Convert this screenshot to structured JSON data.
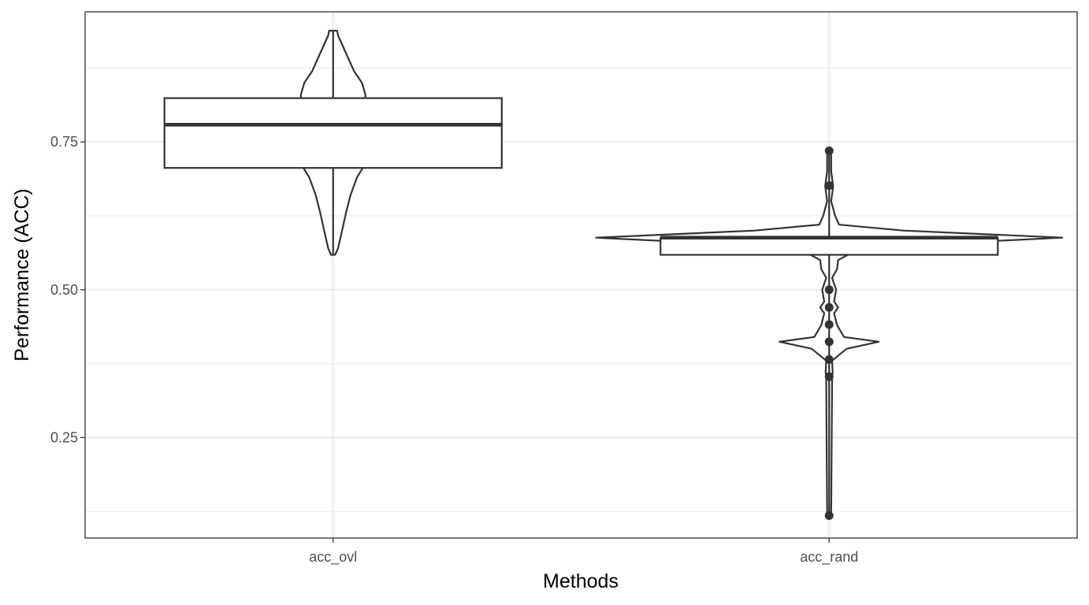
{
  "chart_data": {
    "type": "violin-box",
    "xlabel": "Methods",
    "ylabel": "Performance (ACC)",
    "categories": [
      "acc_ovl",
      "acc_rand"
    ],
    "ylim": [
      0.08,
      0.97
    ],
    "y_ticks": [
      0.25,
      0.5,
      0.75
    ],
    "y_tick_labels": [
      "0.25",
      "0.50",
      "0.75"
    ],
    "grid": true,
    "colors": {
      "line": "#333333",
      "grid": "#ebebeb",
      "panel_border": "#333333",
      "box_fill": "#ffffff"
    },
    "groups": [
      {
        "name": "acc_ovl",
        "box": {
          "q1": 0.706,
          "median": 0.779,
          "q3": 0.824
        },
        "violin_profile": [
          [
            0.559,
            0.004
          ],
          [
            0.57,
            0.01
          ],
          [
            0.6,
            0.018
          ],
          [
            0.63,
            0.026
          ],
          [
            0.66,
            0.035
          ],
          [
            0.69,
            0.048
          ],
          [
            0.706,
            0.06
          ],
          [
            0.83,
            0.065
          ],
          [
            0.85,
            0.058
          ],
          [
            0.87,
            0.042
          ],
          [
            0.9,
            0.026
          ],
          [
            0.93,
            0.01
          ],
          [
            0.938,
            0.008
          ]
        ],
        "outliers": []
      },
      {
        "name": "acc_rand",
        "box": {
          "q1": 0.559,
          "median": 0.588,
          "q3": 0.588
        },
        "violin_profile": [
          [
            0.118,
            0.004
          ],
          [
            0.35,
            0.006
          ],
          [
            0.36,
            0.007
          ],
          [
            0.38,
            0.006
          ],
          [
            0.4,
            0.035
          ],
          [
            0.412,
            0.1
          ],
          [
            0.42,
            0.03
          ],
          [
            0.44,
            0.016
          ],
          [
            0.46,
            0.01
          ],
          [
            0.47,
            0.018
          ],
          [
            0.48,
            0.01
          ],
          [
            0.5,
            0.014
          ],
          [
            0.52,
            0.006
          ],
          [
            0.535,
            0.016
          ],
          [
            0.55,
            0.018
          ],
          [
            0.56,
            0.04
          ],
          [
            0.575,
            0.15
          ],
          [
            0.588,
            0.47
          ],
          [
            0.6,
            0.15
          ],
          [
            0.61,
            0.02
          ],
          [
            0.625,
            0.012
          ],
          [
            0.65,
            0.004
          ],
          [
            0.675,
            0.008
          ],
          [
            0.7,
            0.004
          ],
          [
            0.735,
            0.004
          ]
        ],
        "outliers": [
          0.735,
          0.676,
          0.5,
          0.47,
          0.441,
          0.412,
          0.382,
          0.353,
          0.118
        ]
      }
    ]
  }
}
